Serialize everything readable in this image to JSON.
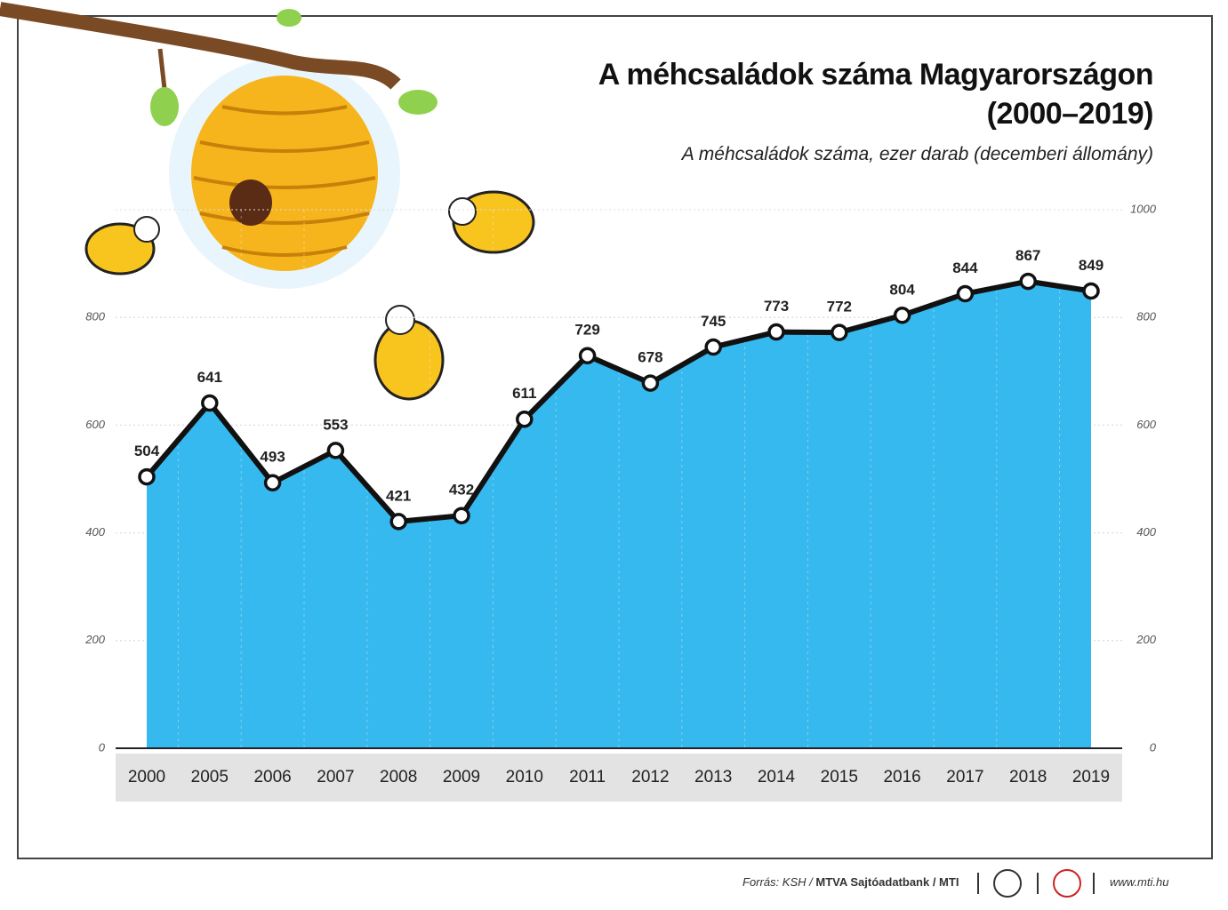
{
  "chart_data": {
    "type": "area",
    "title": "A méhcsaládok száma Magyarországon (2000–2019)",
    "subtitle": "A méhcsaládok száma, ezer darab (decemberi állomány)",
    "categories": [
      "2000",
      "2005",
      "2006",
      "2007",
      "2008",
      "2009",
      "2010",
      "2011",
      "2012",
      "2013",
      "2014",
      "2015",
      "2016",
      "2017",
      "2018",
      "2019"
    ],
    "values": [
      504,
      641,
      493,
      553,
      421,
      432,
      611,
      729,
      678,
      745,
      773,
      772,
      804,
      844,
      867,
      849
    ],
    "color": "#36b9ee",
    "line_color": "#111111",
    "ylim": [
      0,
      1000
    ],
    "yticks": [
      0,
      200,
      400,
      600,
      800
    ],
    "y2lim": [
      0,
      1000
    ],
    "y2ticks": [
      0,
      200,
      400,
      600,
      800,
      1000
    ],
    "grid": true,
    "source": "Forrás: KSH /",
    "publisher": "MTVA Sajtóadatbank / MTI",
    "website": "www.mti.hu"
  }
}
